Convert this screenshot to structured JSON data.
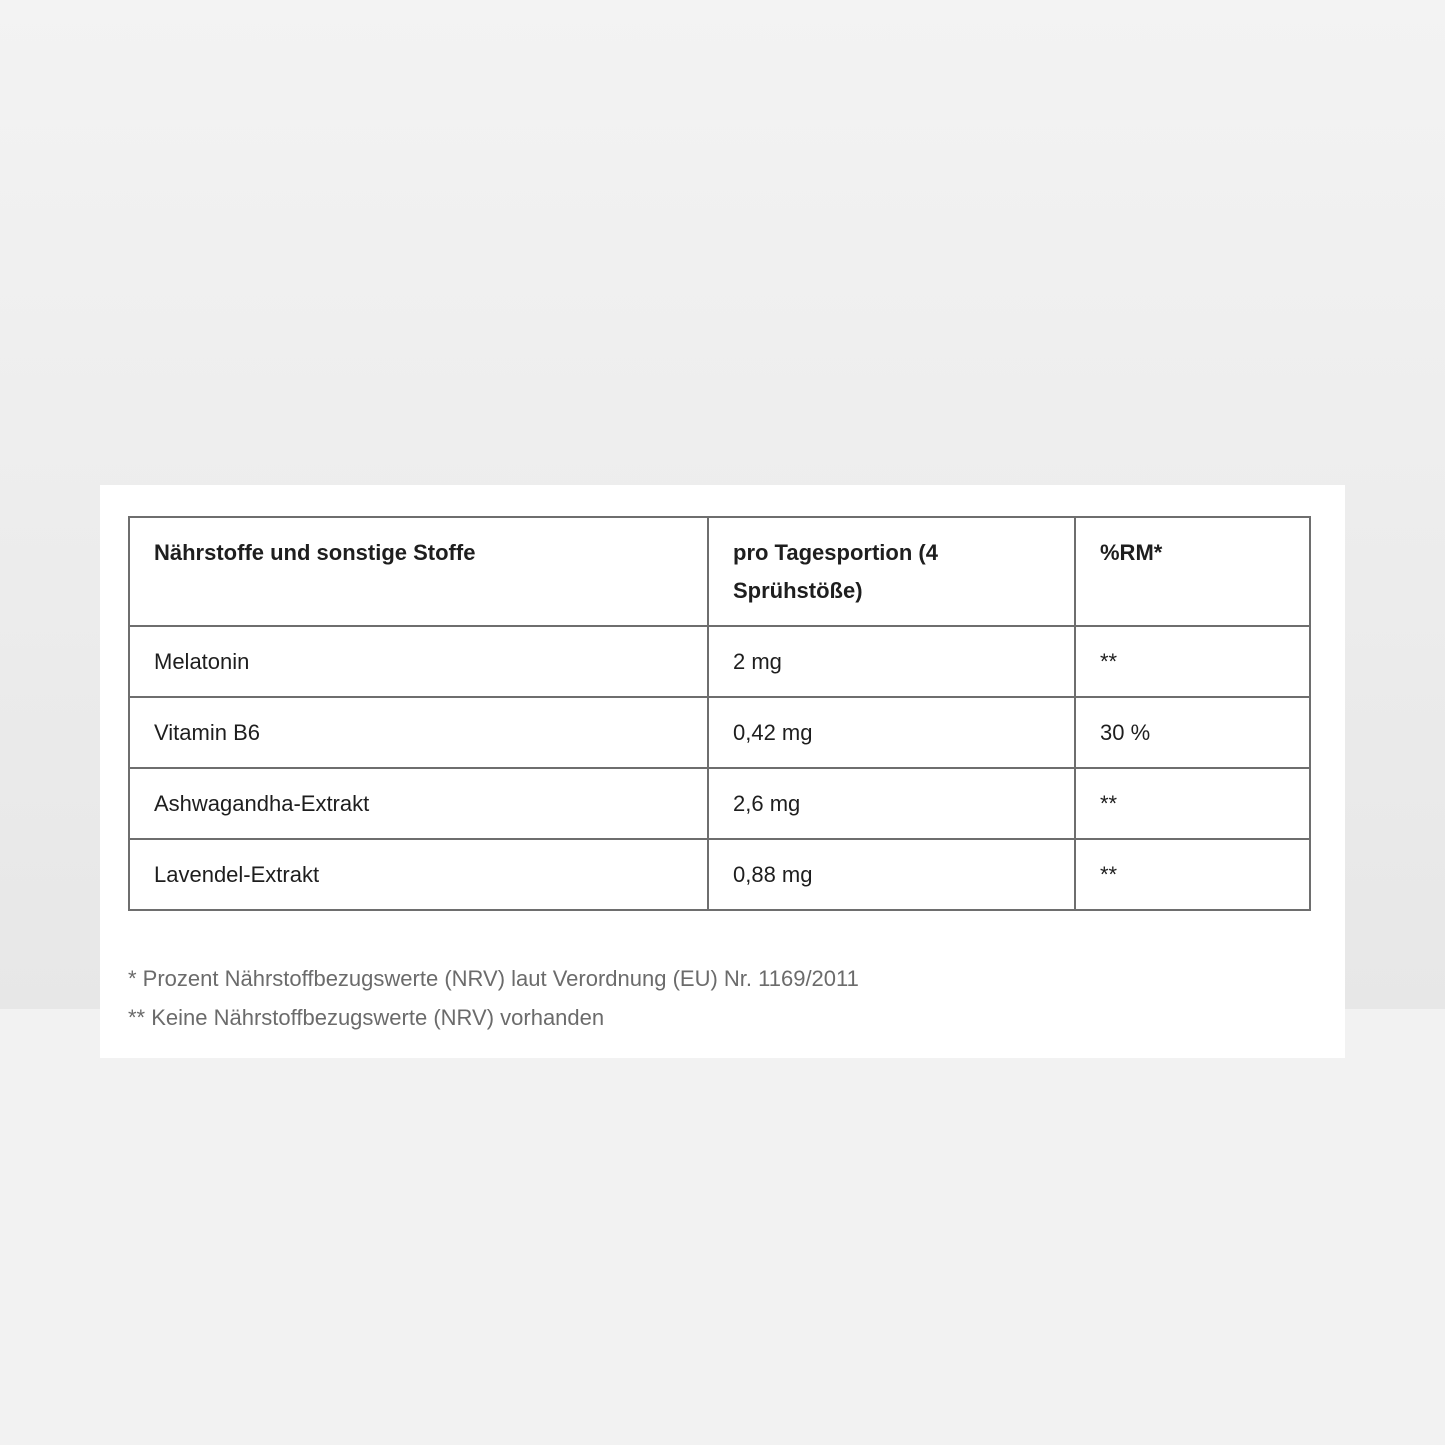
{
  "table": {
    "headers": [
      "Nährstoffe und sonstige Stoffe",
      "pro Tagesportion (4 Sprühstöße)",
      "%RM*"
    ],
    "rows": [
      [
        "Melatonin",
        "2 mg",
        "**"
      ],
      [
        "Vitamin B6",
        "0,42 mg",
        "30 %"
      ],
      [
        "Ashwagandha-Extrakt",
        "2,6 mg",
        "**"
      ],
      [
        "Lavendel-Extrakt",
        "0,88 mg",
        "**"
      ]
    ]
  },
  "footnotes": [
    "* Prozent Nährstoffbezugswerte (NRV) laut Verordnung (EU) Nr. 1169/2011",
    "** Keine Nährstoffbezugswerte (NRV) vorhanden"
  ]
}
